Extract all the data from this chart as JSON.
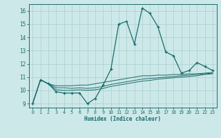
{
  "xlabel": "Humidex (Indice chaleur)",
  "background_color": "#cde8e8",
  "grid_color": "#aacfcf",
  "line_color": "#1a6b6b",
  "x_values": [
    0,
    1,
    2,
    3,
    4,
    5,
    6,
    7,
    8,
    9,
    10,
    11,
    12,
    13,
    14,
    15,
    16,
    17,
    18,
    19,
    20,
    21,
    22,
    23
  ],
  "y_main": [
    9,
    10.8,
    10.5,
    9.9,
    9.8,
    9.8,
    9.8,
    9.0,
    9.4,
    10.4,
    11.6,
    15.0,
    15.2,
    13.5,
    16.2,
    15.8,
    14.8,
    12.9,
    12.6,
    11.3,
    11.5,
    12.1,
    11.8,
    11.5
  ],
  "y_line2": [
    9,
    10.8,
    10.5,
    10.35,
    10.35,
    10.35,
    10.4,
    10.4,
    10.5,
    10.6,
    10.7,
    10.8,
    10.9,
    11.0,
    11.1,
    11.1,
    11.15,
    11.15,
    11.2,
    11.2,
    11.25,
    11.25,
    11.3,
    11.35
  ],
  "y_line3": [
    9,
    10.8,
    10.5,
    10.2,
    10.2,
    10.15,
    10.2,
    10.15,
    10.2,
    10.3,
    10.45,
    10.55,
    10.65,
    10.75,
    10.85,
    10.9,
    10.95,
    11.0,
    11.05,
    11.1,
    11.15,
    11.2,
    11.25,
    11.3
  ],
  "y_line4": [
    9,
    10.8,
    10.5,
    10.05,
    10.0,
    10.0,
    10.05,
    10.0,
    10.05,
    10.15,
    10.3,
    10.4,
    10.5,
    10.6,
    10.7,
    10.75,
    10.85,
    10.9,
    10.95,
    11.0,
    11.05,
    11.1,
    11.2,
    11.25
  ],
  "xlim": [
    -0.5,
    23.5
  ],
  "ylim": [
    8.7,
    16.5
  ],
  "yticks": [
    9,
    10,
    11,
    12,
    13,
    14,
    15,
    16
  ],
  "xticks": [
    0,
    1,
    2,
    3,
    4,
    5,
    6,
    7,
    8,
    9,
    10,
    11,
    12,
    13,
    14,
    15,
    16,
    17,
    18,
    19,
    20,
    21,
    22,
    23
  ]
}
